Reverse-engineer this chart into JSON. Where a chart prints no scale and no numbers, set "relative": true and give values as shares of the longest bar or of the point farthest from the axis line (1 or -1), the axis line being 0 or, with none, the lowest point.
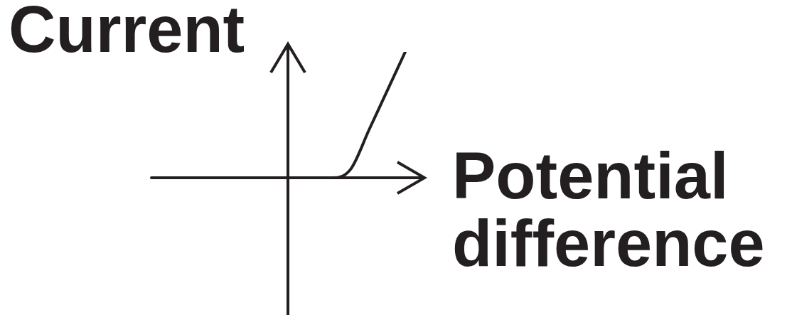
{
  "chart_data": {
    "type": "line",
    "relative": true,
    "xlabel": "Potential difference",
    "ylabel": "Current",
    "categories": [
      null,
      null,
      null,
      null,
      null,
      null,
      null,
      null,
      null,
      null,
      null,
      null,
      null,
      null,
      null
    ],
    "series": [
      {
        "color": "#231f20",
        "values": [
          0,
          0,
          0,
          0,
          0,
          0,
          0,
          0,
          0,
          0,
          0,
          0.07,
          0.38,
          0.69,
          1
        ]
      }
    ],
    "marker": "none",
    "line_style": "solid",
    "legend": false
  }
}
